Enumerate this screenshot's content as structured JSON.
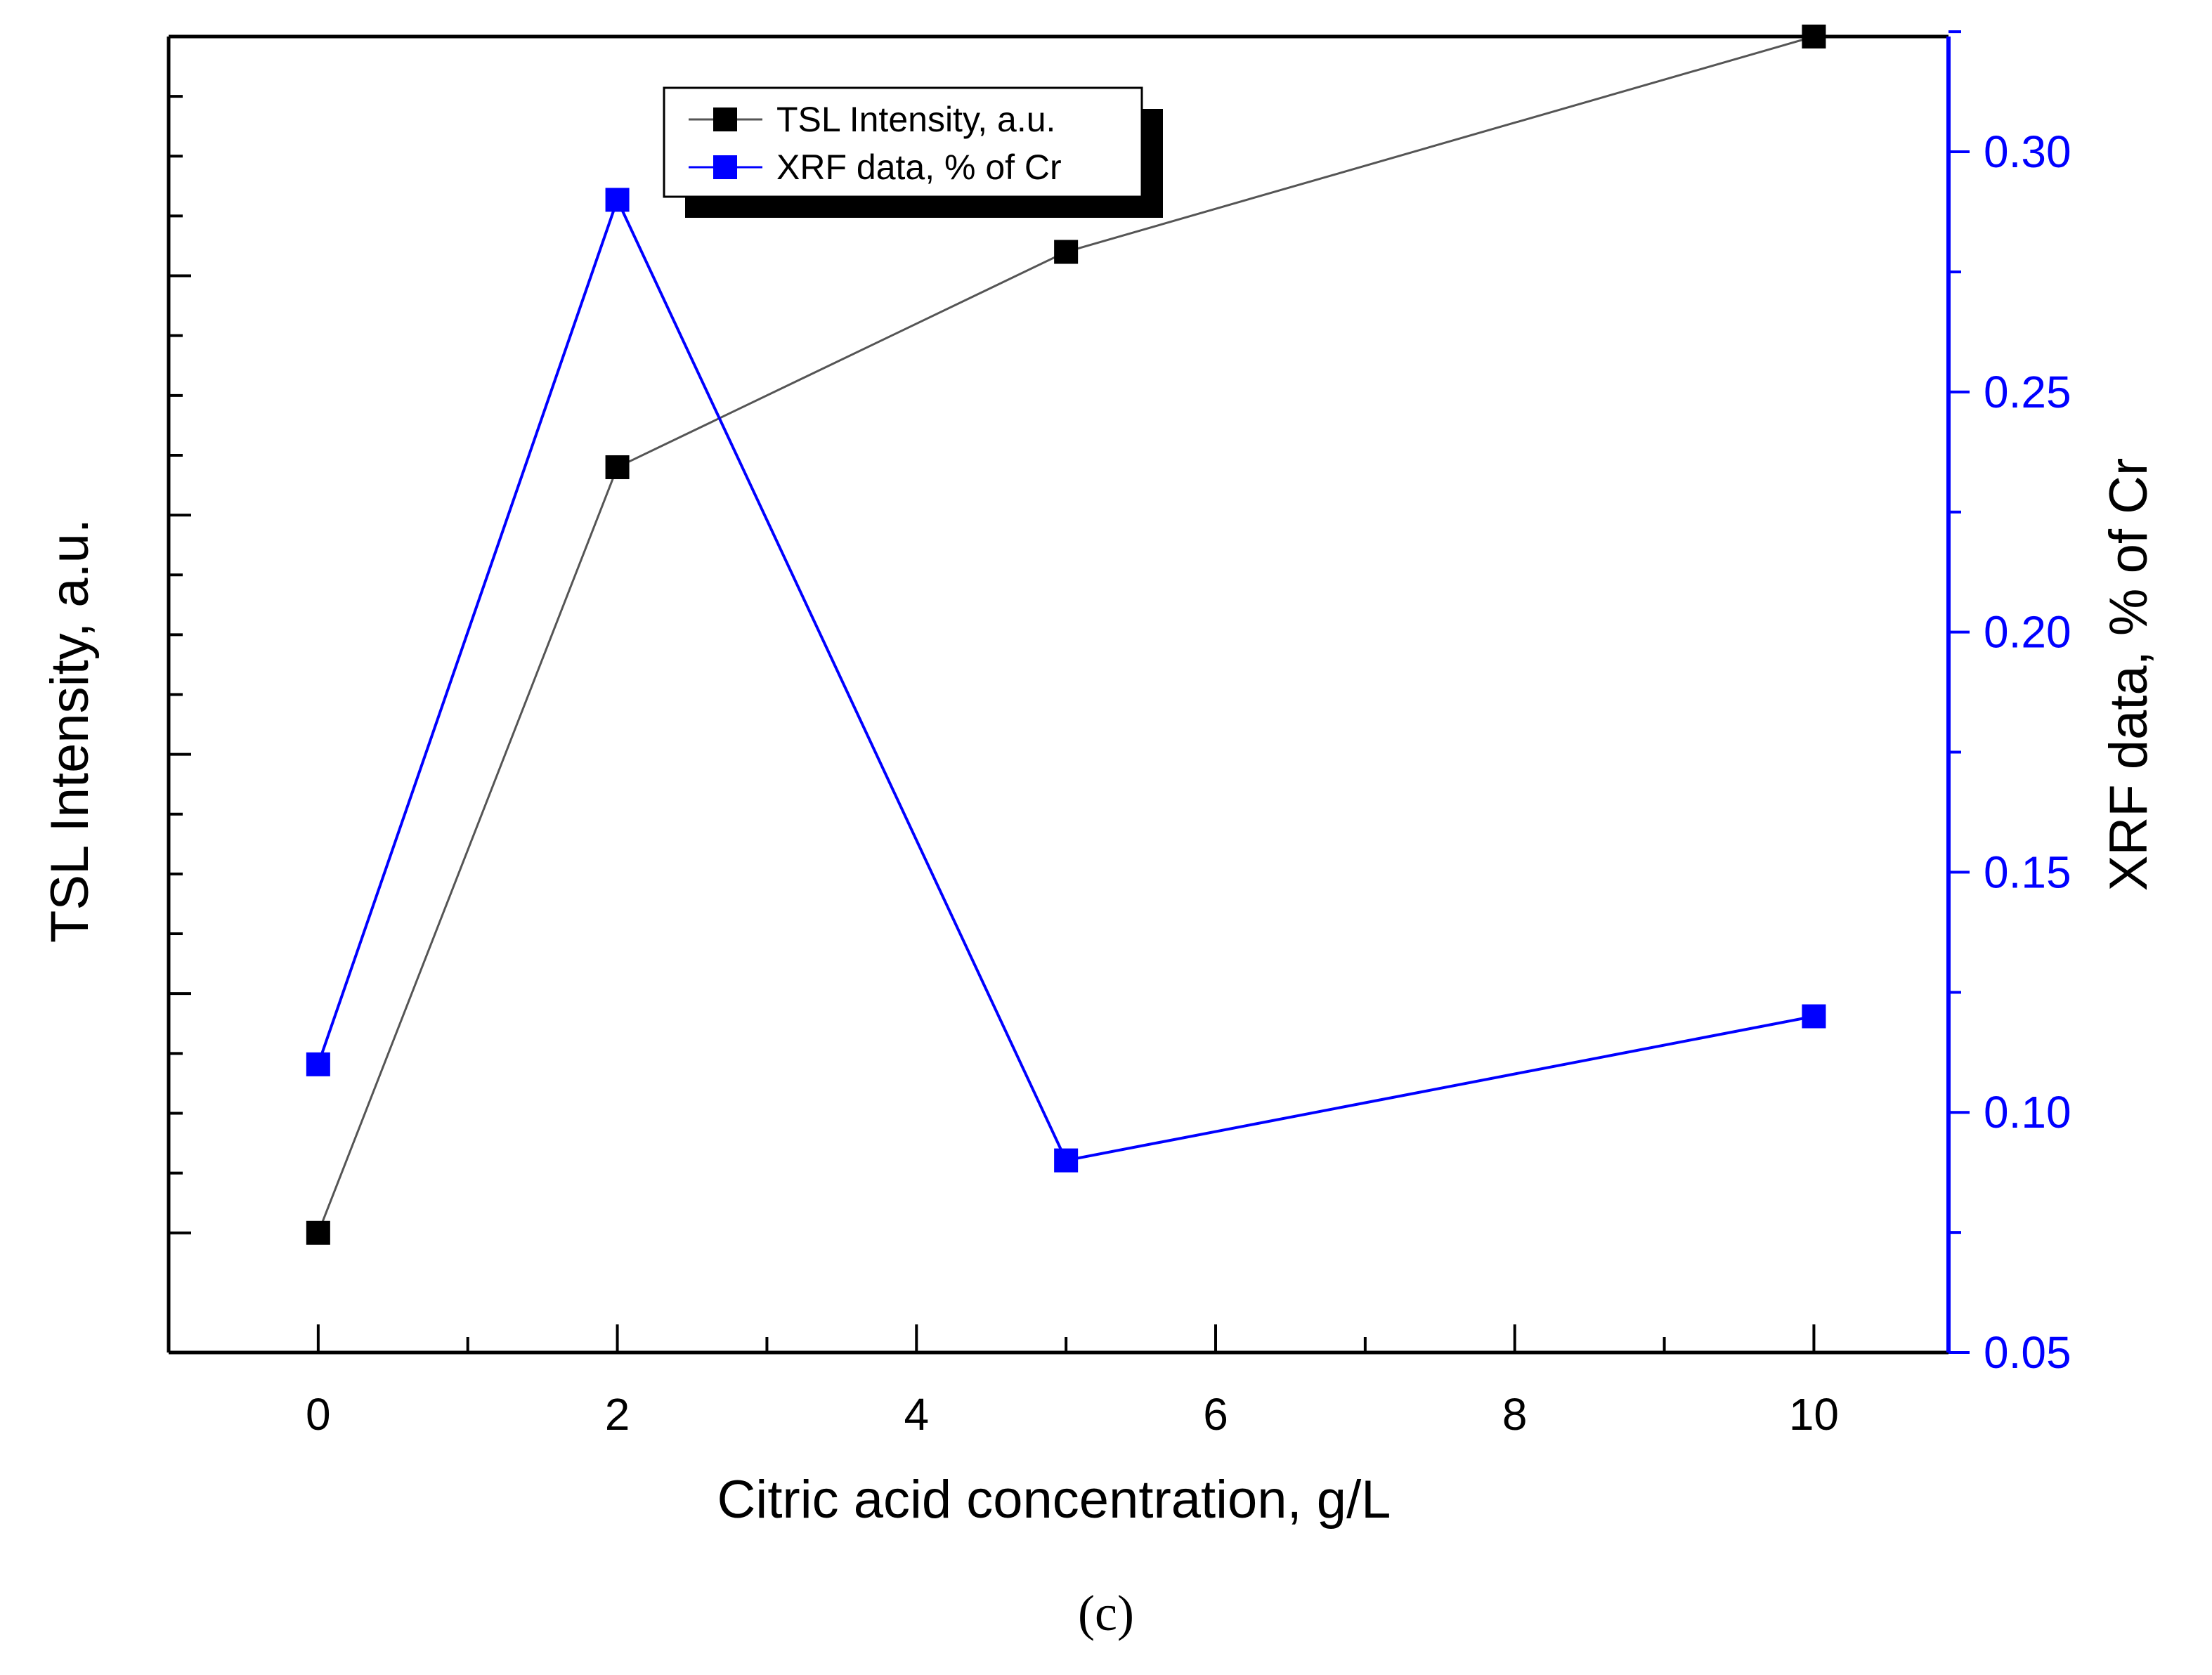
{
  "chart_data": {
    "type": "line",
    "title": "",
    "xlabel": "Citric acid concentration, g/L",
    "ylabel_left": "TSL Intensity, a.u.",
    "ylabel_right": "XRF data, % of Cr",
    "xlim": [
      -1,
      10.9
    ],
    "x_ticks": [
      0,
      2,
      4,
      6,
      8,
      10
    ],
    "ylim_left": [
      0,
      11
    ],
    "ylim_right": [
      0.05,
      0.324
    ],
    "y_right_ticks": [
      "0.05",
      "0.10",
      "0.15",
      "0.20",
      "0.25",
      "0.30"
    ],
    "grid": false,
    "legend_position": "top-center",
    "caption": "(c)",
    "colors": {
      "tsl": "#000000",
      "xrf": "#0000ff",
      "tsl_line": "#555555"
    },
    "series": [
      {
        "name": "TSL Intensity, a.u.",
        "axis": "left",
        "x": [
          0,
          2,
          5,
          10
        ],
        "values": [
          1.0,
          7.4,
          9.2,
          11.0
        ]
      },
      {
        "name": "XRF data, % of Cr",
        "axis": "right",
        "x": [
          0,
          2,
          5,
          10
        ],
        "values": [
          0.11,
          0.29,
          0.09,
          0.12
        ]
      }
    ]
  }
}
